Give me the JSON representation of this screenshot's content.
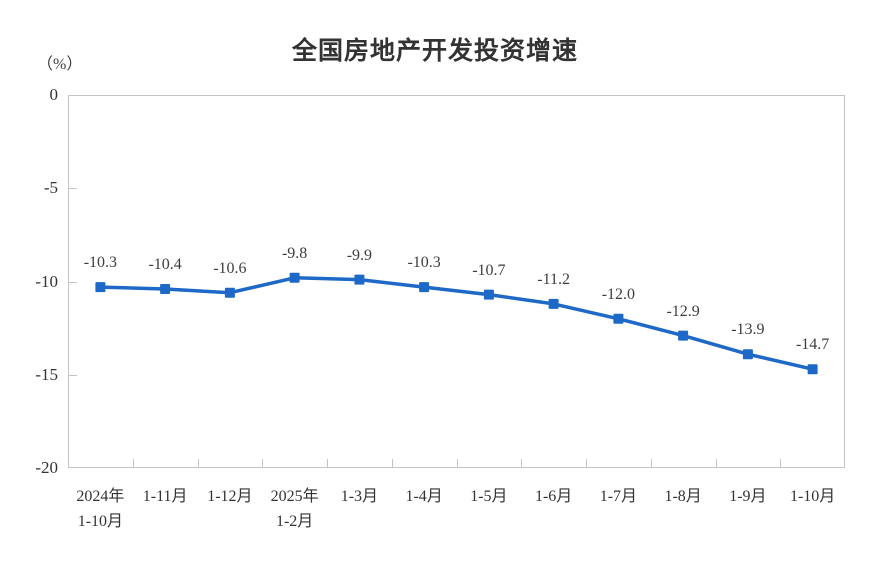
{
  "chart_data": {
    "type": "line",
    "title": "全国房地产开发投资增速",
    "unit_label": "（%）",
    "categories": [
      "2024年\n1-10月",
      "1-11月",
      "1-12月",
      "2025年\n1-2月",
      "1-3月",
      "1-4月",
      "1-5月",
      "1-6月",
      "1-7月",
      "1-8月",
      "1-9月",
      "1-10月"
    ],
    "values": [
      -10.3,
      -10.4,
      -10.6,
      -9.8,
      -9.9,
      -10.3,
      -10.7,
      -11.2,
      -12.0,
      -12.9,
      -13.9,
      -14.7
    ],
    "data_labels": [
      "-10.3",
      "-10.4",
      "-10.6",
      "-9.8",
      "-9.9",
      "-10.3",
      "-10.7",
      "-11.2",
      "-12.0",
      "-12.9",
      "-13.9",
      "-14.7"
    ],
    "y_ticks": [
      0,
      -5,
      -10,
      -15,
      -20
    ],
    "y_tick_labels": [
      "0",
      "-5",
      "-10",
      "-15",
      "-20"
    ],
    "ylim": [
      -20,
      0
    ],
    "xlabel": "",
    "ylabel": "（%）",
    "grid": false,
    "legend": false,
    "line_color": "#1e68c8",
    "marker": "square",
    "axis_color": "#c4c4c4"
  }
}
